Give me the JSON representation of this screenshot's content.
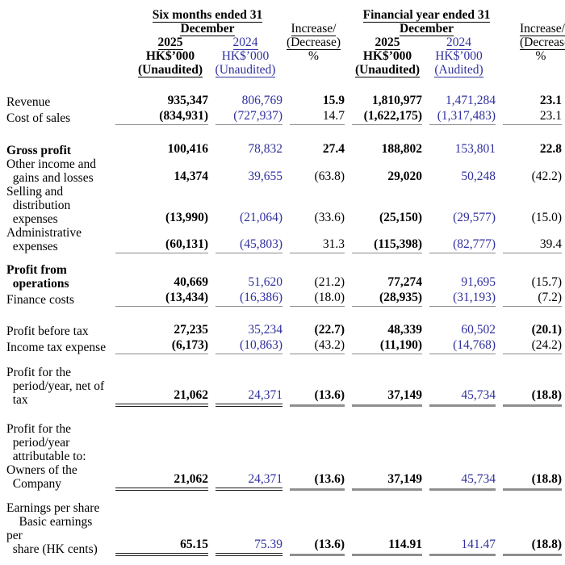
{
  "colors": {
    "accent_blue": "#30309e",
    "rule_gray": "#8a8a8a"
  },
  "header": {
    "group1_title_line1": "Six months ended 31",
    "group1_title_line2": "December",
    "group2_title_line1": "Financial year ended 31",
    "group2_title_line2": "December",
    "pct_line1": "Increase/",
    "pct_line2": "(Decrease)",
    "pct_unit": "%",
    "col_2025": "2025",
    "col_2024": "2024",
    "unit": "HK$’000",
    "unaudited": "(Unaudited)",
    "audited": "(Audited)"
  },
  "rows": [
    {
      "sp": 21,
      "label": "Revenue",
      "lb": false,
      "cells": [
        "935,347",
        "806,769",
        "15.9",
        "1,810,977",
        "1,471,284",
        "23.1"
      ],
      "pb": [
        true,
        true
      ],
      "ul": "none"
    },
    {
      "label": "Cost of sales",
      "lb": false,
      "cells": [
        "(834,931)",
        "(727,937)",
        "14.7",
        "(1,622,175)",
        "(1,317,483)",
        "23.1"
      ],
      "pb": [
        false,
        false
      ],
      "ul": "gray"
    },
    {
      "sp": 21,
      "label": "Gross profit",
      "lb": true,
      "cells": [
        "100,416",
        "78,832",
        "27.4",
        "188,802",
        "153,801",
        "22.8"
      ],
      "pb": [
        true,
        true
      ],
      "ul": "none"
    },
    {
      "label": "Other income and\n  gains and losses",
      "lb": false,
      "cells": [
        "14,374",
        "39,655",
        "(63.8)",
        "29,020",
        "50,248",
        "(42.2)"
      ],
      "pb": [
        false,
        false
      ],
      "ul": "none"
    },
    {
      "label": "Selling and\n  distribution\n  expenses",
      "lb": false,
      "cells": [
        "(13,990)",
        "(21,064)",
        "(33.6)",
        "(25,150)",
        "(29,577)",
        "(15.0)"
      ],
      "pb": [
        false,
        false
      ],
      "ul": "none"
    },
    {
      "label": "Administrative\n  expenses",
      "lb": false,
      "cells": [
        "(60,131)",
        "(45,803)",
        "31.3",
        "(115,398)",
        "(82,777)",
        "39.4"
      ],
      "pb": [
        false,
        false
      ],
      "ul": "gray"
    },
    {
      "sp": 12,
      "label": "Profit from\n  operations",
      "lb": true,
      "cells": [
        "40,669",
        "51,620",
        "(21.2)",
        "77,274",
        "91,695",
        "(15.7)"
      ],
      "pb": [
        false,
        false
      ],
      "ul": "none"
    },
    {
      "label": "Finance costs",
      "lb": false,
      "cells": [
        "(13,434)",
        "(16,386)",
        "(18.0)",
        "(28,935)",
        "(31,193)",
        "(7.2)"
      ],
      "pb": [
        false,
        false
      ],
      "ul": "gray"
    },
    {
      "sp": 20,
      "label": "Profit before tax",
      "lb": false,
      "cells": [
        "27,235",
        "35,234",
        "(22.7)",
        "48,339",
        "60,502",
        "(20.1)"
      ],
      "pb": [
        true,
        true
      ],
      "ul": "none"
    },
    {
      "label": "Income tax expense",
      "lb": false,
      "cells": [
        "(6,173)",
        "(10,863)",
        "(43.2)",
        "(11,190)",
        "(14,768)",
        "(24.2)"
      ],
      "pb": [
        false,
        false
      ],
      "ul": "gray"
    },
    {
      "sp": 14,
      "label": "Profit for the\n  period/year, net of\n  tax",
      "lb": false,
      "cells": [
        "21,062",
        "24,371",
        "(13.6)",
        "37,149",
        "45,734",
        "(18.8)"
      ],
      "pb": [
        true,
        true
      ],
      "ul": "dbl"
    },
    {
      "sp": 19,
      "label": "Profit for the\n  period/year\n  attributable to:\nOwners of the\n  Company",
      "lb": false,
      "cells": [
        "21,062",
        "24,371",
        "(13.6)",
        "37,149",
        "45,734",
        "(18.8)"
      ],
      "pb": [
        true,
        true
      ],
      "ul": "dbl"
    },
    {
      "sp": 13,
      "label": "Earnings per share\n    Basic earnings per\n  share (HK cents)",
      "lb": false,
      "cells": [
        "65.15",
        "75.39",
        "(13.6)",
        "114.91",
        "141.47",
        "(18.8)"
      ],
      "pb": [
        true,
        true
      ],
      "ul": "dbl"
    }
  ]
}
